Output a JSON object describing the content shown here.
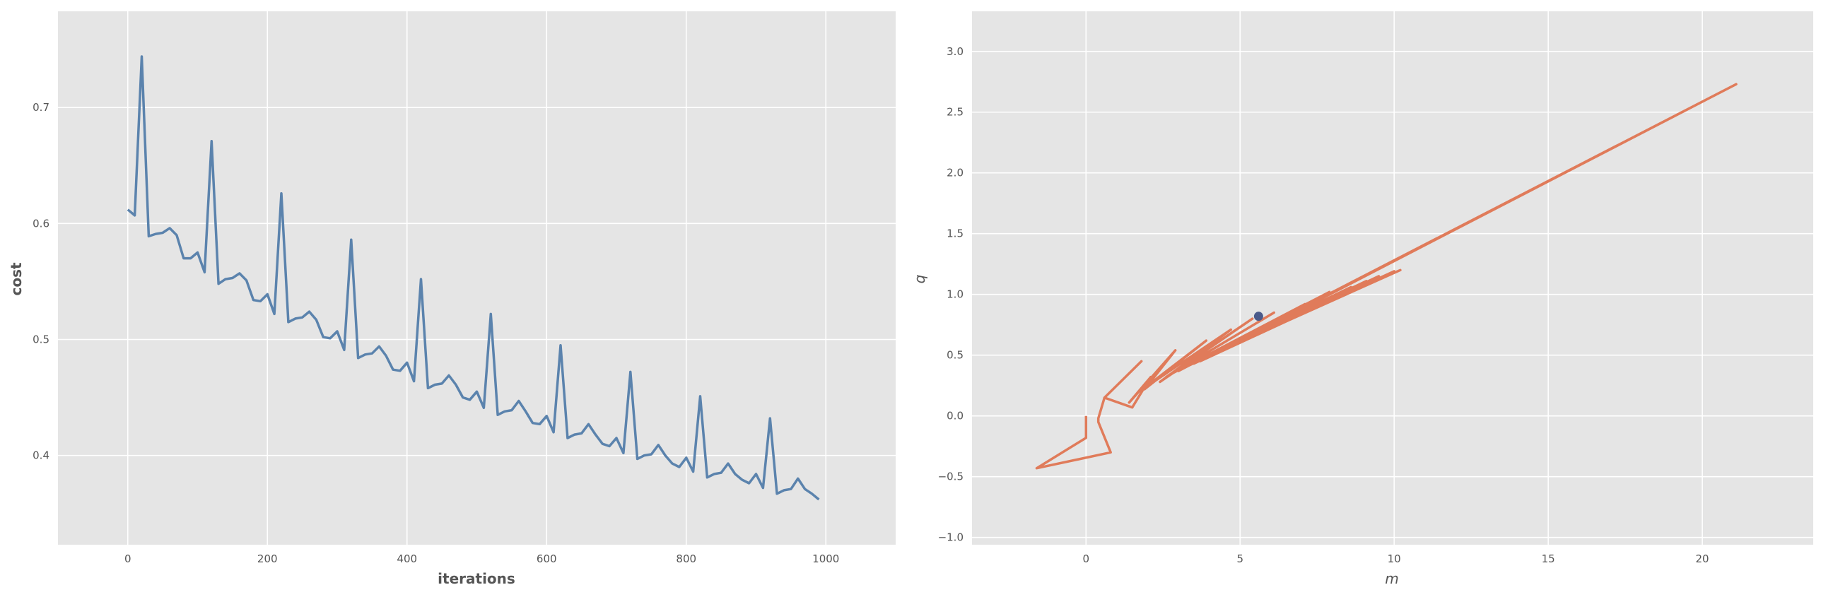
{
  "chart_data": [
    {
      "type": "line",
      "title": "",
      "xlabel": "iterations",
      "ylabel": "cost",
      "xlim": [
        -100,
        1100
      ],
      "ylim": [
        0.323,
        0.783
      ],
      "xticks": [
        0,
        200,
        400,
        600,
        800,
        1000
      ],
      "yticks": [
        0.4,
        0.5,
        0.6,
        0.7
      ],
      "xtick_labels": [
        "0",
        "200",
        "400",
        "600",
        "800",
        "1000"
      ],
      "ytick_labels": [
        "0.4",
        "0.5",
        "0.6",
        "0.7"
      ],
      "grid": true,
      "colors": {
        "background": "#e5e5e5",
        "grid": "#ffffff",
        "line": "#5b83ad"
      },
      "series": [
        {
          "x": [
            0,
            10,
            20,
            30,
            40,
            50,
            60,
            70,
            80,
            90,
            100,
            110,
            120,
            130,
            140,
            150,
            160,
            170,
            180,
            190,
            200,
            210,
            220,
            230,
            240,
            250,
            260,
            270,
            280,
            290,
            300,
            310,
            320,
            330,
            340,
            350,
            360,
            370,
            380,
            390,
            400,
            410,
            420,
            430,
            440,
            450,
            460,
            470,
            480,
            490,
            500,
            510,
            520,
            530,
            540,
            550,
            560,
            570,
            580,
            590,
            600,
            610,
            620,
            630,
            640,
            650,
            660,
            670,
            680,
            690,
            700,
            710,
            720,
            730,
            740,
            750,
            760,
            770,
            780,
            790,
            800,
            810,
            820,
            830,
            840,
            850,
            860,
            870,
            880,
            890,
            900,
            910,
            920,
            930,
            940,
            950,
            960,
            970,
            980,
            990
          ],
          "y": [
            0.612,
            0.607,
            0.744,
            0.589,
            0.591,
            0.592,
            0.596,
            0.59,
            0.57,
            0.57,
            0.575,
            0.558,
            0.671,
            0.548,
            0.552,
            0.553,
            0.557,
            0.551,
            0.534,
            0.533,
            0.539,
            0.522,
            0.626,
            0.515,
            0.518,
            0.519,
            0.524,
            0.517,
            0.502,
            0.501,
            0.507,
            0.491,
            0.586,
            0.484,
            0.487,
            0.488,
            0.494,
            0.486,
            0.474,
            0.473,
            0.48,
            0.464,
            0.552,
            0.458,
            0.461,
            0.462,
            0.469,
            0.461,
            0.45,
            0.448,
            0.455,
            0.441,
            0.522,
            0.435,
            0.438,
            0.439,
            0.447,
            0.438,
            0.428,
            0.427,
            0.434,
            0.42,
            0.495,
            0.415,
            0.418,
            0.419,
            0.427,
            0.418,
            0.41,
            0.408,
            0.415,
            0.402,
            0.472,
            0.397,
            0.4,
            0.401,
            0.409,
            0.4,
            0.393,
            0.39,
            0.398,
            0.386,
            0.451,
            0.381,
            0.384,
            0.385,
            0.393,
            0.384,
            0.379,
            0.376,
            0.384,
            0.372,
            0.432,
            0.367,
            0.37,
            0.371,
            0.38,
            0.371,
            0.367,
            0.362
          ]
        }
      ]
    },
    {
      "type": "line",
      "title": "",
      "xlabel": "m",
      "ylabel": "q",
      "xlim": [
        -3.7,
        23.6
      ],
      "ylim": [
        -1.06,
        3.33
      ],
      "xticks": [
        0,
        5,
        10,
        15,
        20
      ],
      "yticks": [
        -1.0,
        -0.5,
        0.0,
        0.5,
        1.0,
        1.5,
        2.0,
        2.5,
        3.0
      ],
      "xtick_labels": [
        "0",
        "5",
        "10",
        "15",
        "20"
      ],
      "ytick_labels": [
        "−1.0",
        "−0.5",
        "0.0",
        "0.5",
        "1.0",
        "1.5",
        "2.0",
        "2.5",
        "3.0"
      ],
      "grid": true,
      "colors": {
        "background": "#e5e5e5",
        "grid": "#ffffff",
        "line": "#e07b5a",
        "marker": "#4a5a8a"
      },
      "series": [
        {
          "x": [
            0.0,
            0.0,
            -1.6,
            0.8,
            0.4,
            0.4,
            0.6,
            1.8,
            0.6,
            1.5,
            2.1,
            1.4,
            2.9,
            1.9,
            3.9,
            1.9,
            4.7,
            2.4,
            5.4,
            2.6,
            6.1,
            2.8,
            7.1,
            3.0,
            7.9,
            3.1,
            8.6,
            3.3,
            9.1,
            3.5,
            9.5,
            3.7,
            10.0,
            3.9,
            21.1,
            4.1,
            21.1,
            4.4,
            10.2,
            4.6
          ],
          "y": [
            0.0,
            -0.18,
            -0.43,
            -0.3,
            -0.05,
            -0.02,
            0.15,
            0.45,
            0.15,
            0.07,
            0.32,
            0.11,
            0.54,
            0.22,
            0.62,
            0.23,
            0.71,
            0.28,
            0.8,
            0.32,
            0.85,
            0.35,
            0.92,
            0.37,
            1.02,
            0.39,
            1.06,
            0.41,
            1.11,
            0.43,
            1.15,
            0.45,
            1.19,
            0.48,
            2.73,
            0.51,
            2.73,
            0.54,
            1.2,
            0.57
          ]
        }
      ],
      "marker_point": {
        "x": 5.6,
        "y": 0.82
      }
    }
  ]
}
